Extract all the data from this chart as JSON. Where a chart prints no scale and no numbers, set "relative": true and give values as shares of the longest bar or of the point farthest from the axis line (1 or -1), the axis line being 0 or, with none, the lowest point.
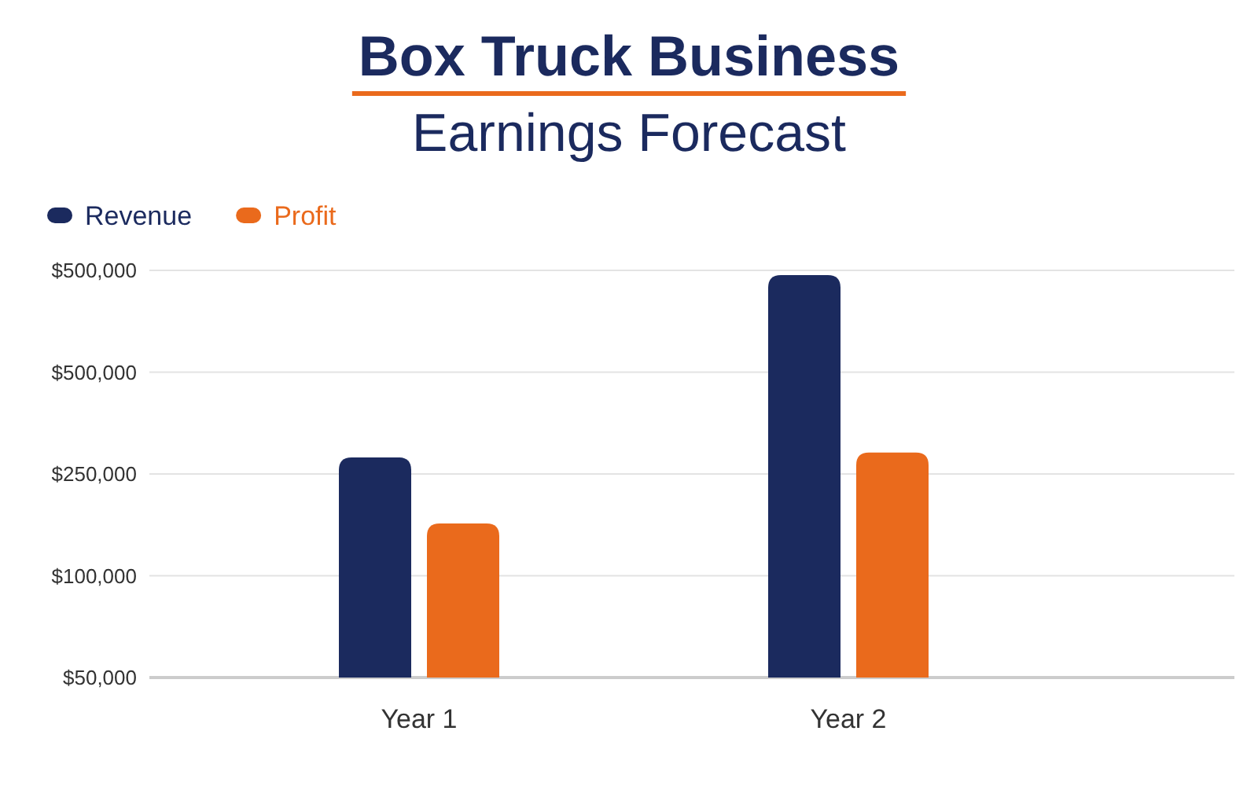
{
  "chart_data": {
    "type": "bar",
    "title": "Box Truck Business",
    "subtitle": "Earnings Forecast",
    "categories": [
      "Year 1",
      "Year 2"
    ],
    "series": [
      {
        "name": "Revenue",
        "color": "#1b2a5e",
        "values": [
          0.547,
          1
        ]
      },
      {
        "name": "Profit",
        "color": "#ea6a1c",
        "values": [
          0.383,
          0.559
        ]
      }
    ],
    "relative": true,
    "annotations": [
      "$50,000",
      "$100,000",
      "$250,000",
      "$500,000",
      "$500,000"
    ],
    "grid": "y",
    "legend": "top left"
  }
}
